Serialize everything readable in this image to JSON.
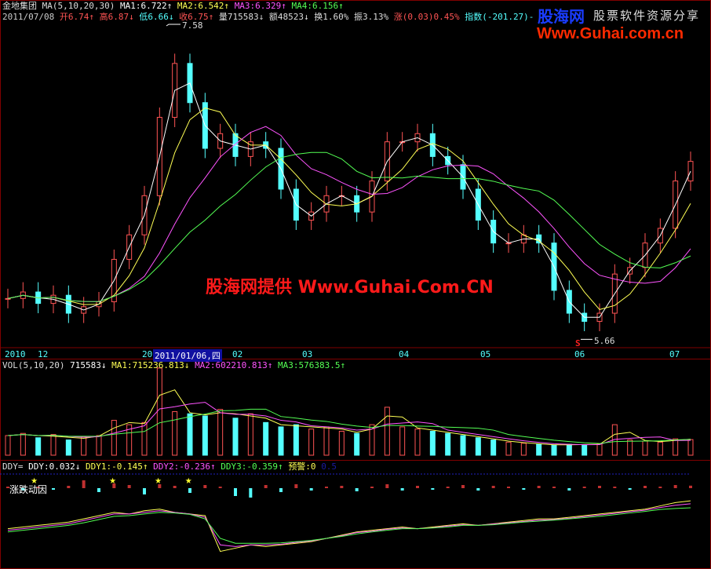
{
  "header": {
    "stock_name": "金地集团",
    "ma_params": "MA(5,10,20,30)",
    "ma1": "MA1:6.722↑",
    "ma2": "MA2:6.542↑",
    "ma3": "MA3:6.329↑",
    "ma4": "MA4:6.156↑",
    "date": "2011/07/08",
    "open": "开6.74↑",
    "high": "高6.87↓",
    "low": "低6.66↓",
    "close": "收6.75↑",
    "volume": "量715583↓",
    "amount": "额48523↓",
    "turnover": "换1.60%",
    "amplitude": "振3.13%",
    "change": "涨(0.03)0.45%",
    "index": "指数(-201.27)-6.71%"
  },
  "watermark": {
    "brand": "股海网",
    "slogan": "股票软件资源分享",
    "url": "Www.Guhai.com.cn",
    "center": "股海网提供 Www.Guhai.Com.CN"
  },
  "annotations": {
    "high": "7.58",
    "low": "5.66",
    "signal": "S"
  },
  "x_axis": {
    "labels": [
      "2010",
      "12",
      "02",
      "03",
      "04",
      "05",
      "06",
      "07"
    ],
    "cursor_date": "2011/01/06,四",
    "cursor_prefix": "20"
  },
  "volume_header": {
    "label": "VOL(5,10,20)",
    "vol": "715583↓",
    "ma1": "MA1:715236.813↓",
    "ma2": "MA2:602210.813↑",
    "ma3": "MA3:576383.5↑"
  },
  "ddy_header": {
    "label": "DDY=",
    "ddy": "DDY:0.032↓",
    "ddy1": "DDY1:-0.145↑",
    "ddy2": "DDY2:-0.236↑",
    "ddy3": "DDY3:-0.359↑",
    "warn": "预警:0",
    "level": "0.5",
    "factor_label": "涨跌动因"
  },
  "colors": {
    "up": "#ff5454",
    "down": "#54ffff",
    "ma1": "#ffffff",
    "ma2": "#ffff54",
    "ma3": "#ff54ff",
    "ma4": "#54ff54",
    "border": "#800000"
  },
  "chart_data": [
    {
      "type": "candlestick",
      "title": "金地集团",
      "ylim": [
        5.5,
        7.7
      ],
      "close": [
        5.91,
        5.95,
        5.88,
        5.93,
        5.82,
        5.86,
        5.89,
        6.15,
        6.3,
        6.54,
        7.02,
        7.35,
        7.11,
        6.83,
        6.92,
        6.78,
        6.87,
        6.83,
        6.58,
        6.39,
        6.44,
        6.54,
        6.54,
        6.44,
        6.63,
        6.87,
        6.87,
        6.92,
        6.78,
        6.73,
        6.58,
        6.39,
        6.25,
        6.25,
        6.3,
        6.25,
        5.96,
        5.82,
        5.77,
        5.82,
        6.06,
        6.1,
        6.25,
        6.34,
        6.63,
        6.75
      ],
      "high_mark": 7.58,
      "low_mark": 5.66
    },
    {
      "type": "bar",
      "title": "VOL(5,10,20)",
      "values": [
        900000,
        1000000,
        800000,
        950000,
        700000,
        850000,
        900000,
        1600000,
        1400000,
        1500000,
        4000000,
        2000000,
        1900000,
        1800000,
        2100000,
        1700000,
        1900000,
        1500000,
        1300000,
        1400000,
        1200000,
        1300000,
        1100000,
        1000000,
        1400000,
        2200000,
        1300000,
        1200000,
        1100000,
        1000000,
        900000,
        800000,
        700000,
        600000,
        550000,
        500000,
        450000,
        500000,
        480000,
        520000,
        1400000,
        700000,
        650000,
        600000,
        750000,
        715583
      ]
    },
    {
      "type": "line",
      "title": "DDY",
      "bars": [
        0.02,
        -0.03,
        0.02,
        -0.02,
        0.03,
        0.1,
        -0.05,
        0.06,
        0.04,
        -0.08,
        0.05,
        0.03,
        -0.06,
        0.04,
        0.02,
        -0.1,
        -0.12,
        0.04,
        -0.05,
        0.05,
        -0.03,
        0.02,
        0.03,
        -0.04,
        0.02,
        0.05,
        -0.03,
        0.03,
        -0.02,
        0.02,
        0.04,
        -0.03,
        0.03,
        0.02,
        -0.02,
        0.03,
        0.02,
        -0.03,
        0.02,
        0.03,
        0.02,
        -0.02,
        0.03,
        0.02,
        0.04,
        0.032
      ],
      "signals_at": [
        1,
        7,
        10,
        12
      ],
      "series": [
        {
          "name": "DDY1",
          "values": [
            -1.0,
            -0.95,
            -0.9,
            -0.85,
            -0.8,
            -0.7,
            -0.6,
            -0.5,
            -0.55,
            -0.45,
            -0.4,
            -0.5,
            -0.55,
            -0.6,
            -1.7,
            -1.6,
            -1.5,
            -1.55,
            -1.5,
            -1.45,
            -1.4,
            -1.3,
            -1.2,
            -1.1,
            -1.05,
            -1.0,
            -0.95,
            -1.0,
            -0.95,
            -0.9,
            -0.85,
            -0.9,
            -0.85,
            -0.8,
            -0.75,
            -0.7,
            -0.7,
            -0.65,
            -0.6,
            -0.55,
            -0.5,
            -0.45,
            -0.4,
            -0.3,
            -0.2,
            -0.145
          ]
        },
        {
          "name": "DDY2",
          "values": [
            -1.05,
            -1.0,
            -0.95,
            -0.9,
            -0.85,
            -0.75,
            -0.65,
            -0.55,
            -0.55,
            -0.5,
            -0.45,
            -0.5,
            -0.55,
            -0.65,
            -1.5,
            -1.55,
            -1.5,
            -1.5,
            -1.48,
            -1.42,
            -1.38,
            -1.3,
            -1.22,
            -1.12,
            -1.08,
            -1.02,
            -0.98,
            -1.0,
            -0.97,
            -0.92,
            -0.88,
            -0.9,
            -0.86,
            -0.82,
            -0.78,
            -0.74,
            -0.72,
            -0.68,
            -0.63,
            -0.58,
            -0.53,
            -0.48,
            -0.43,
            -0.35,
            -0.28,
            -0.236
          ]
        },
        {
          "name": "DDY3",
          "values": [
            -1.1,
            -1.05,
            -1.0,
            -0.95,
            -0.9,
            -0.82,
            -0.72,
            -0.62,
            -0.6,
            -0.55,
            -0.5,
            -0.52,
            -0.56,
            -0.7,
            -1.3,
            -1.45,
            -1.45,
            -1.45,
            -1.44,
            -1.4,
            -1.36,
            -1.3,
            -1.24,
            -1.16,
            -1.1,
            -1.05,
            -1.0,
            -1.0,
            -0.98,
            -0.95,
            -0.9,
            -0.9,
            -0.88,
            -0.84,
            -0.8,
            -0.77,
            -0.74,
            -0.7,
            -0.66,
            -0.62,
            -0.57,
            -0.52,
            -0.47,
            -0.41,
            -0.38,
            -0.359
          ]
        }
      ],
      "ylim": [
        -2.0,
        0.1
      ]
    }
  ]
}
